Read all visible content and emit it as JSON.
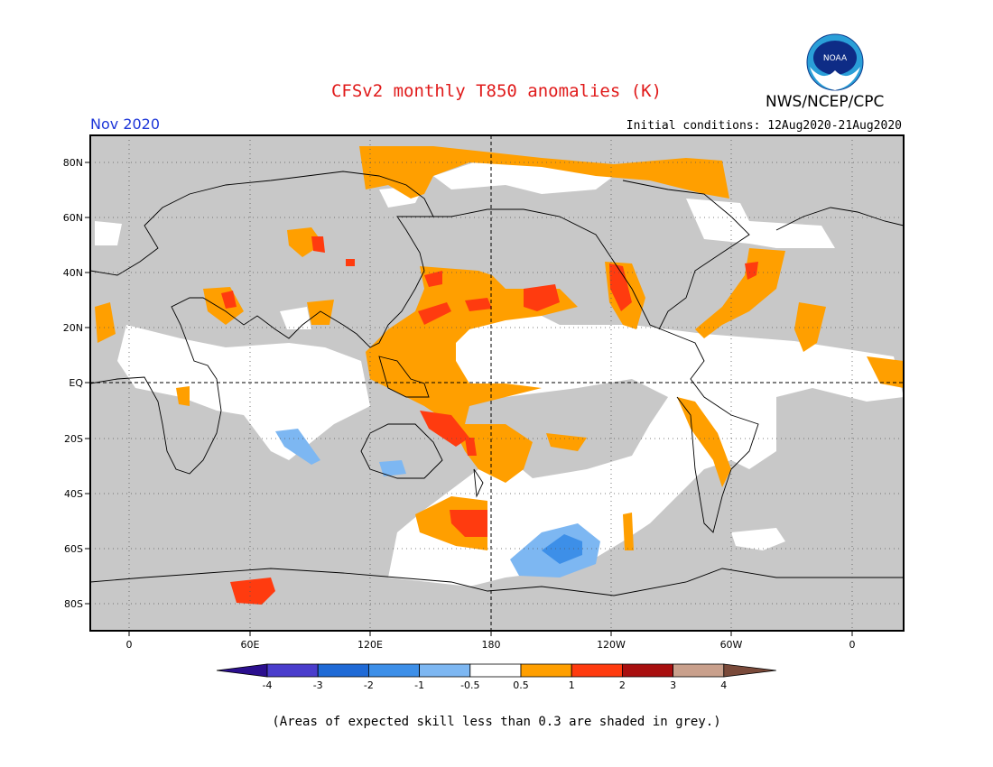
{
  "header": {
    "title": "CFSv2 monthly T850 anomalies (K)",
    "organization": "NWS/NCEP/CPC",
    "logo_text": "NOAA",
    "month": "Nov 2020",
    "initial_conditions": "Initial conditions: 12Aug2020-21Aug2020"
  },
  "map": {
    "latitude_labels": [
      "80N",
      "60N",
      "40N",
      "20N",
      "EQ",
      "20S",
      "40S",
      "60S",
      "80S"
    ],
    "longitude_labels": [
      "0",
      "60E",
      "120E",
      "180",
      "120W",
      "60W",
      "0"
    ],
    "background_color": "#c8c8c8"
  },
  "legend": {
    "tick_labels": [
      "-4",
      "-3",
      "-2",
      "-1",
      "-0.5",
      "0.5",
      "1",
      "2",
      "3",
      "4"
    ],
    "colors": [
      "#2b0f8e",
      "#4a3dcc",
      "#1f6ad6",
      "#3d8fe8",
      "#7db7f2",
      "#ffffff",
      "#ff9f00",
      "#ff3b0f",
      "#a80f0f",
      "#c9a08c",
      "#7a4a3a"
    ]
  },
  "footnote": "(Areas of expected skill less than 0.3 are shaded in grey.)"
}
